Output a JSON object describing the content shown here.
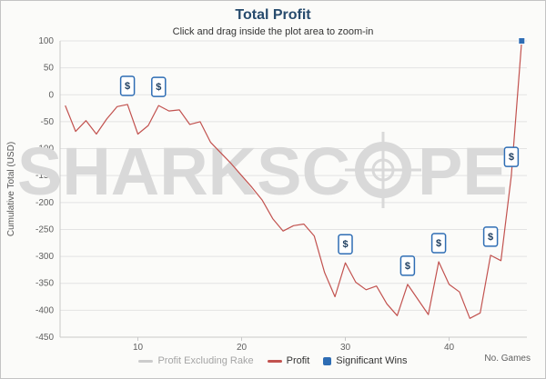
{
  "title": "Total Profit",
  "subtitle": "Click and drag inside the plot area to zoom-in",
  "watermark": {
    "left": "SHARKSC",
    "right": "PE"
  },
  "win_marker_label": "$",
  "legend": [
    {
      "label": "Profit Excluding Rake",
      "color": "#cccccc",
      "type": "line",
      "enabled": false
    },
    {
      "label": "Profit",
      "color": "#c2524f",
      "type": "line",
      "enabled": true
    },
    {
      "label": "Significant Wins",
      "color": "#2e6db4",
      "type": "square",
      "enabled": true
    }
  ],
  "colors": {
    "title": "#274b6d",
    "grid": "#e3e3e3",
    "axis_line": "#c8c8c8",
    "tick_label": "#606060",
    "watermark": "#d9d9d9",
    "profit_line": "#c2524f",
    "win_blue": "#2e6db4",
    "tag_fill": "#ffffff",
    "tag_text": "#1c3c5e"
  },
  "chart_data": {
    "type": "line",
    "title": "Total Profit",
    "subtitle": "Click and drag inside the plot area to zoom-in",
    "xlabel": "No. Games",
    "ylabel": "Cumulative Total (USD)",
    "xlim": [
      2.5,
      47.5
    ],
    "ylim": [
      -450,
      100
    ],
    "y_ticks": [
      100,
      50,
      0,
      -50,
      -100,
      -150,
      -200,
      -250,
      -300,
      -350,
      -400,
      -450
    ],
    "x_ticks": [
      10,
      20,
      30,
      40
    ],
    "grid": "horizontal",
    "legend_position": "bottom",
    "x": [
      3,
      4,
      5,
      6,
      7,
      8,
      9,
      10,
      11,
      12,
      13,
      14,
      15,
      16,
      17,
      18,
      19,
      20,
      21,
      22,
      23,
      24,
      25,
      26,
      27,
      28,
      29,
      30,
      31,
      32,
      33,
      34,
      35,
      36,
      37,
      38,
      39,
      40,
      41,
      42,
      43,
      44,
      45,
      46,
      47
    ],
    "series": [
      {
        "name": "Profit Excluding Rake",
        "color": "#cccccc",
        "visible": false,
        "values": []
      },
      {
        "name": "Profit",
        "color": "#c2524f",
        "visible": true,
        "values": [
          -20,
          -68,
          -48,
          -73,
          -45,
          -22,
          -18,
          -73,
          -57,
          -20,
          -30,
          -28,
          -55,
          -50,
          -88,
          -108,
          -128,
          -150,
          -172,
          -196,
          -230,
          -253,
          -243,
          -240,
          -262,
          -330,
          -375,
          -312,
          -348,
          -362,
          -355,
          -388,
          -410,
          -352,
          -380,
          -408,
          -310,
          -352,
          -366,
          -415,
          -405,
          -298,
          -308,
          -150,
          100
        ]
      }
    ],
    "significant_wins": {
      "name": "Significant Wins",
      "color": "#2e6db4",
      "label": "$",
      "points": [
        {
          "x": 9,
          "y": -18,
          "style": "tag"
        },
        {
          "x": 12,
          "y": -20,
          "style": "tag"
        },
        {
          "x": 30,
          "y": -312,
          "style": "tag"
        },
        {
          "x": 36,
          "y": -352,
          "style": "tag"
        },
        {
          "x": 39,
          "y": -310,
          "style": "tag"
        },
        {
          "x": 44,
          "y": -298,
          "style": "tag"
        },
        {
          "x": 46,
          "y": -150,
          "style": "tag"
        },
        {
          "x": 47,
          "y": 100,
          "style": "square"
        }
      ]
    }
  }
}
